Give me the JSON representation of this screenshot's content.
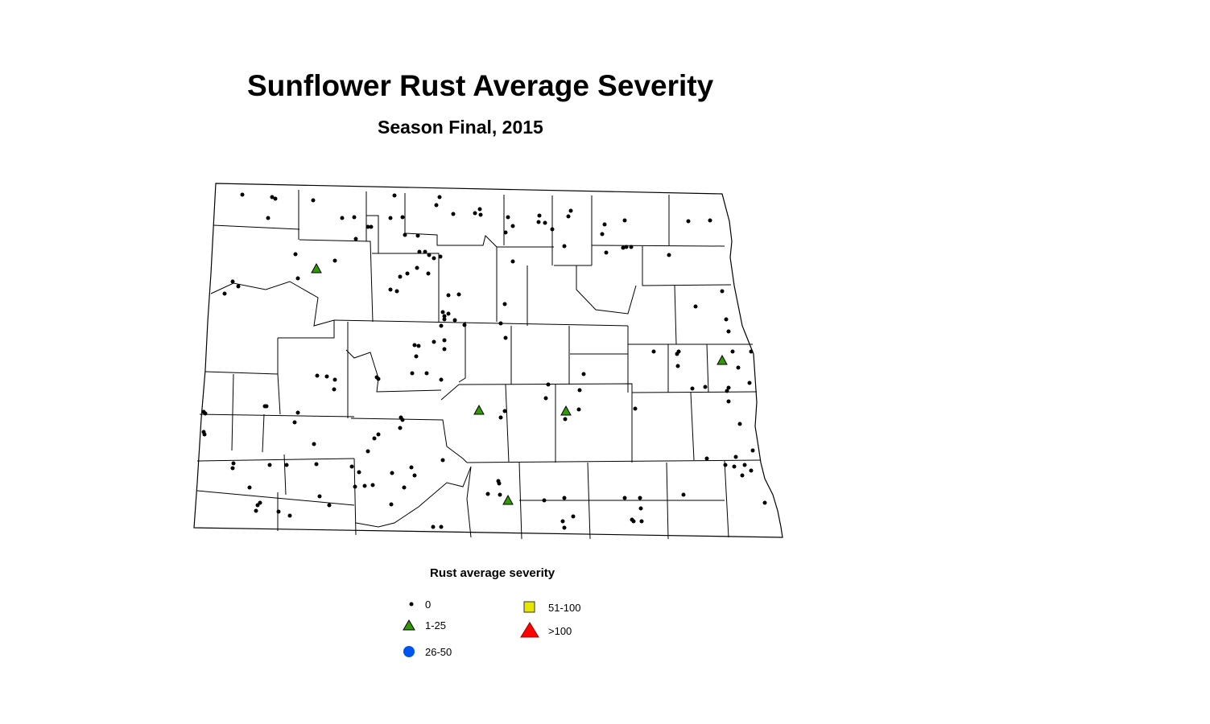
{
  "title": "Sunflower Rust Average Severity",
  "subtitle": "Season Final, 2015",
  "legend": {
    "title": "Rust average severity",
    "items": [
      {
        "label": "0",
        "symbol": "small-dot",
        "color": "#000000"
      },
      {
        "label": "1-25",
        "symbol": "triangle",
        "color": "#339900"
      },
      {
        "label": "26-50",
        "symbol": "circle",
        "color": "#0055ee"
      },
      {
        "label": "51-100",
        "symbol": "square",
        "color": "#e6e600"
      },
      {
        "label": ">100",
        "symbol": "triangle",
        "color": "#ff0000"
      }
    ]
  }
}
